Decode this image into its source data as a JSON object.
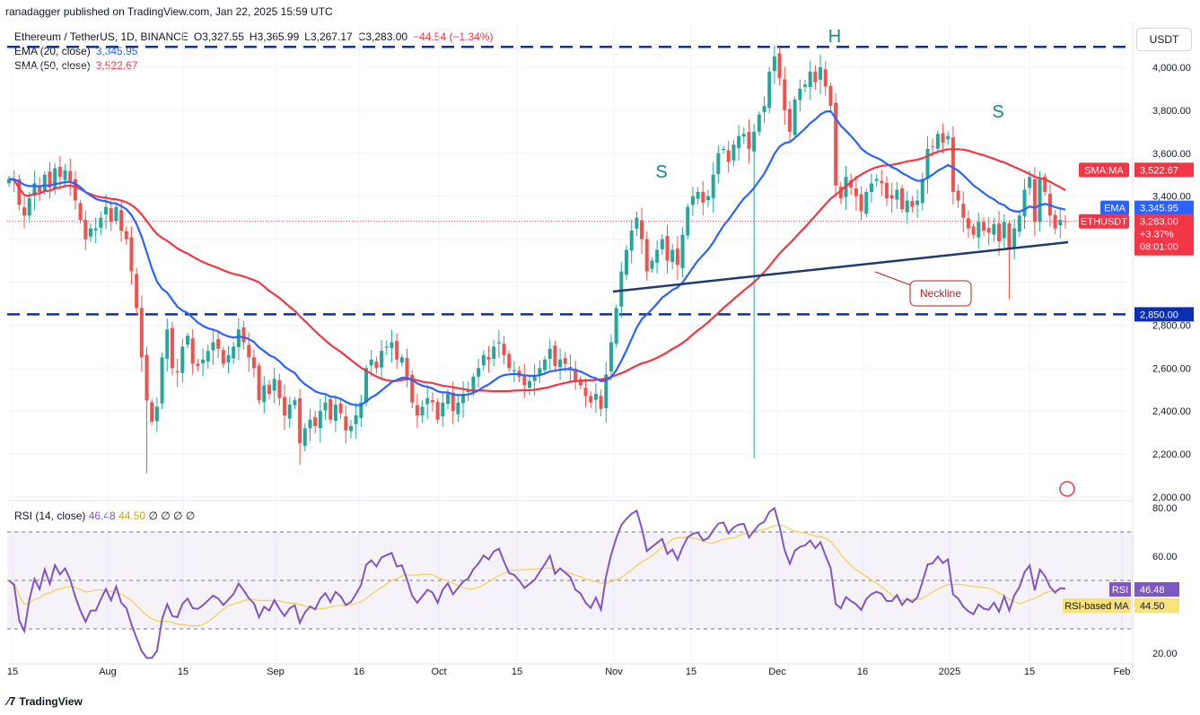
{
  "header": {
    "published": "ranadagger published on TradingView.com, Jan 22, 2025 15:59 UTC"
  },
  "legend": {
    "symbol": "Ethereum / TetherUS, 1D, BINANCE",
    "open": "O3,327.55",
    "high": "H3,365.99",
    "low": "L3,267.17",
    "close": "C3,283.00",
    "change": "−44.54 (−1.34%)",
    "ema_label": "EMA (20, close)",
    "ema_value": "3,345.95",
    "sma_label": "SMA (50, close)",
    "sma_value": "3,522.67"
  },
  "rsi_legend": {
    "label": "RSI (14, close)",
    "rsi_value": "46.48",
    "ma_value": "44.50",
    "extra": "∅ ∅ ∅ ∅"
  },
  "currency_button": "USDT",
  "footer": {
    "brand": "TradingView"
  },
  "colors": {
    "up": "#26A69A",
    "down": "#EF5350",
    "ema": "#2962FF",
    "sma": "#F23645",
    "neckline": "#1E3A6E",
    "level": "#0A2FB0",
    "rsi": "#7E57C2",
    "rsi_ma": "#F2D35A",
    "pattern_text": "#138A7A"
  },
  "chart_data": [
    {
      "type": "candlestick",
      "y_scale": {
        "min": 2000,
        "max": 4100
      },
      "x_labels": [
        "15",
        "Aug",
        "15",
        "Sep",
        "16",
        "Oct",
        "15",
        "Nov",
        "15",
        "Dec",
        "16",
        "2025",
        "15",
        "Feb"
      ],
      "y_ticks": [
        "4,000.00",
        "3,800.00",
        "3,600.00",
        "3,400.00",
        "2,800.00",
        "2,600.00",
        "2,400.00",
        "2,200.00",
        "2,000.00"
      ],
      "levels": [
        {
          "price": 4095,
          "label": ""
        },
        {
          "price": 2850,
          "label": "2,850.00"
        }
      ],
      "neckline": {
        "from_price": 2958,
        "to_price": 3192,
        "label": "Neckline"
      },
      "pattern_labels": [
        "S",
        "H",
        "S"
      ],
      "price_tags": [
        {
          "name": "SMA:MA",
          "value": "3,522.67"
        },
        {
          "name": "EMA",
          "value": "3,345.95"
        },
        {
          "name": "ETHUSDT",
          "value": "3,283.00",
          "extra": [
            "+3.37%",
            "08:01:00"
          ]
        }
      ],
      "close_series": [
        3480,
        3470,
        3360,
        3310,
        3390,
        3460,
        3420,
        3500,
        3440,
        3530,
        3490,
        3520,
        3470,
        3380,
        3290,
        3200,
        3250,
        3250,
        3300,
        3350,
        3280,
        3350,
        3240,
        3200,
        3050,
        2880,
        2650,
        2450,
        2350,
        2420,
        2650,
        2780,
        2600,
        2580,
        2700,
        2750,
        2620,
        2610,
        2640,
        2680,
        2720,
        2690,
        2620,
        2660,
        2700,
        2780,
        2720,
        2650,
        2600,
        2450,
        2520,
        2480,
        2550,
        2460,
        2380,
        2430,
        2450,
        2250,
        2320,
        2360,
        2330,
        2400,
        2440,
        2360,
        2430,
        2390,
        2310,
        2330,
        2380,
        2440,
        2600,
        2640,
        2600,
        2680,
        2700,
        2720,
        2640,
        2650,
        2560,
        2440,
        2380,
        2420,
        2460,
        2440,
        2360,
        2440,
        2480,
        2400,
        2440,
        2480,
        2500,
        2560,
        2600,
        2660,
        2640,
        2700,
        2720,
        2660,
        2600,
        2590,
        2560,
        2520,
        2540,
        2560,
        2600,
        2640,
        2690,
        2610,
        2640,
        2620,
        2600,
        2540,
        2520,
        2470,
        2440,
        2480,
        2410,
        2570,
        2720,
        2880,
        3050,
        3150,
        3240,
        3300,
        3200,
        3050,
        3100,
        3150,
        3200,
        3100,
        3150,
        3080,
        3220,
        3350,
        3400,
        3420,
        3370,
        3400,
        3500,
        3600,
        3620,
        3560,
        3640,
        3680,
        3690,
        3620,
        3700,
        3780,
        3820,
        3980,
        4050,
        3950,
        3800,
        3700,
        3850,
        3900,
        3920,
        3980,
        3930,
        4000,
        3910,
        3820,
        3450,
        3390,
        3490,
        3440,
        3400,
        3330,
        3420,
        3460,
        3480,
        3460,
        3390,
        3390,
        3430,
        3340,
        3380,
        3350,
        3380,
        3480,
        3620,
        3630,
        3690,
        3650,
        3680,
        3420,
        3380,
        3300,
        3250,
        3220,
        3280,
        3240,
        3230,
        3270,
        3190,
        3280,
        3150,
        3250,
        3310,
        3430,
        3490,
        3280,
        3480,
        3420,
        3310,
        3250,
        3290,
        3283
      ],
      "ema": {
        "name": "EMA",
        "last": 3345.95
      },
      "sma": {
        "name": "SMA:MA",
        "last": 3522.67
      }
    },
    {
      "type": "line",
      "y_ticks": [
        "80.00",
        "60.00",
        "20.00"
      ],
      "ylim": [
        18,
        84
      ],
      "bands": [
        30,
        50,
        70
      ],
      "price_tags": [
        {
          "name": "RSI",
          "value": "46.48"
        },
        {
          "name": "RSI-based MA",
          "value": "44.50"
        }
      ]
    }
  ]
}
